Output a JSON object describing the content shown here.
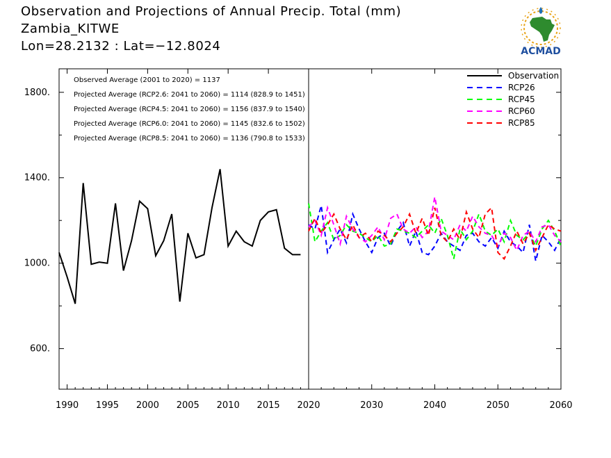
{
  "header": {
    "title": "Observation and Projections of Annual Precip. Total (mm)",
    "location": "Zambia_KITWE",
    "coords": "Lon=28.2132 : Lat=−12.8024"
  },
  "logo": {
    "text": "ACMAD",
    "colors": {
      "africa": "#2e8b2e",
      "ring": "#e8a317",
      "drop": "#1f6fb5",
      "text": "#1f4f9f"
    }
  },
  "chart_data": {
    "type": "line",
    "title": "Observation and Projections of Annual Precip. Total (mm)",
    "xlabel": "",
    "ylabel": "",
    "xlim": [
      1989,
      2060
    ],
    "ylim": [
      410,
      1910
    ],
    "y_ticks": [
      600,
      1000,
      1400,
      1800
    ],
    "y_tick_labels": [
      "600.",
      "1000.",
      "1400.",
      "1800."
    ],
    "x_ticks_obs": [
      1990,
      1995,
      2000,
      2005,
      2010,
      2015,
      2020
    ],
    "x_ticks_proj": [
      2030,
      2040,
      2050,
      2060
    ],
    "x_tick_labels": [
      "1990",
      "1995",
      "2000",
      "2005",
      "2010",
      "2015",
      "2020",
      "2030",
      "2040",
      "2050",
      "2060"
    ],
    "legend_position": "top-right",
    "annotations": [
      "Observed Average (2001 to 2020) = 1137",
      "Projected Average (RCP2.6: 2041 to 2060) = 1114 (828.9 to 1451)",
      "Projected Average (RCP4.5: 2041 to 2060) = 1156 (837.9 to 1540)",
      "Projected Average (RCP6.0: 2041 to 2060) = 1145 (832.6 to 1502)",
      "Projected Average (RCP8.5: 2041 to 2060) = 1136 (790.8 to 1533)"
    ],
    "series": [
      {
        "name": "Observation",
        "color": "#000000",
        "dash": "solid",
        "x": [
          1989,
          1990,
          1991,
          1992,
          1993,
          1994,
          1995,
          1996,
          1997,
          1998,
          1999,
          2000,
          2001,
          2002,
          2003,
          2004,
          2005,
          2006,
          2007,
          2008,
          2009,
          2010,
          2011,
          2012,
          2013,
          2014,
          2015,
          2016,
          2017,
          2018,
          2019
        ],
        "values": [
          1050,
          935,
          810,
          1375,
          995,
          1005,
          1000,
          1280,
          965,
          1105,
          1290,
          1255,
          1035,
          1105,
          1230,
          820,
          1140,
          1025,
          1040,
          1260,
          1440,
          1080,
          1150,
          1100,
          1080,
          1200,
          1240,
          1250,
          1070,
          1040,
          1040
        ]
      },
      {
        "name": "RCP26",
        "color": "#0000ff",
        "dash": "dashed",
        "x": [
          2020,
          2021,
          2022,
          2023,
          2024,
          2025,
          2026,
          2027,
          2028,
          2029,
          2030,
          2031,
          2032,
          2033,
          2034,
          2035,
          2036,
          2037,
          2038,
          2039,
          2040,
          2041,
          2042,
          2043,
          2044,
          2045,
          2046,
          2047,
          2048,
          2049,
          2050,
          2051,
          2052,
          2053,
          2054,
          2055,
          2056,
          2057,
          2058,
          2059,
          2060
        ],
        "values": [
          1180,
          1160,
          1270,
          1050,
          1110,
          1160,
          1095,
          1230,
          1160,
          1100,
          1050,
          1120,
          1140,
          1080,
          1150,
          1190,
          1080,
          1150,
          1050,
          1040,
          1080,
          1140,
          1100,
          1080,
          1060,
          1130,
          1140,
          1100,
          1080,
          1120,
          1070,
          1150,
          1100,
          1080,
          1050,
          1180,
          1010,
          1130,
          1100,
          1060,
          1120
        ]
      },
      {
        "name": "RCP45",
        "color": "#00ff00",
        "dash": "dashed",
        "x": [
          2020,
          2021,
          2022,
          2023,
          2024,
          2025,
          2026,
          2027,
          2028,
          2029,
          2030,
          2031,
          2032,
          2033,
          2034,
          2035,
          2036,
          2037,
          2038,
          2039,
          2040,
          2041,
          2042,
          2043,
          2044,
          2045,
          2046,
          2047,
          2048,
          2049,
          2050,
          2051,
          2052,
          2053,
          2054,
          2055,
          2056,
          2057,
          2058,
          2059,
          2060
        ],
        "values": [
          1280,
          1100,
          1150,
          1190,
          1110,
          1130,
          1180,
          1150,
          1140,
          1120,
          1100,
          1130,
          1080,
          1090,
          1160,
          1150,
          1140,
          1120,
          1150,
          1180,
          1140,
          1210,
          1130,
          1020,
          1160,
          1110,
          1150,
          1230,
          1150,
          1130,
          1160,
          1100,
          1200,
          1130,
          1110,
          1140,
          1080,
          1160,
          1200,
          1150,
          1080
        ]
      },
      {
        "name": "RCP60",
        "color": "#ff00ff",
        "dash": "dashed",
        "x": [
          2020,
          2021,
          2022,
          2023,
          2024,
          2025,
          2026,
          2027,
          2028,
          2029,
          2030,
          2031,
          2032,
          2033,
          2034,
          2035,
          2036,
          2037,
          2038,
          2039,
          2040,
          2041,
          2042,
          2043,
          2044,
          2045,
          2046,
          2047,
          2048,
          2049,
          2050,
          2051,
          2052,
          2053,
          2054,
          2055,
          2056,
          2057,
          2058,
          2059,
          2060
        ],
        "values": [
          1170,
          1200,
          1130,
          1260,
          1180,
          1090,
          1220,
          1160,
          1120,
          1100,
          1130,
          1170,
          1110,
          1210,
          1230,
          1160,
          1140,
          1170,
          1120,
          1150,
          1310,
          1150,
          1130,
          1110,
          1180,
          1150,
          1220,
          1170,
          1140,
          1130,
          1080,
          1140,
          1120,
          1060,
          1130,
          1150,
          1100,
          1170,
          1180,
          1130,
          1100
        ]
      },
      {
        "name": "RCP85",
        "color": "#ff0000",
        "dash": "dashed",
        "x": [
          2020,
          2021,
          2022,
          2023,
          2024,
          2025,
          2026,
          2027,
          2028,
          2029,
          2030,
          2031,
          2032,
          2033,
          2034,
          2035,
          2036,
          2037,
          2038,
          2039,
          2040,
          2041,
          2042,
          2043,
          2044,
          2045,
          2046,
          2047,
          2048,
          2049,
          2050,
          2051,
          2052,
          2053,
          2054,
          2055,
          2056,
          2057,
          2058,
          2059,
          2060
        ],
        "values": [
          1150,
          1210,
          1140,
          1180,
          1230,
          1160,
          1110,
          1180,
          1120,
          1140,
          1100,
          1150,
          1130,
          1100,
          1140,
          1170,
          1230,
          1140,
          1210,
          1130,
          1260,
          1130,
          1100,
          1160,
          1110,
          1240,
          1160,
          1120,
          1230,
          1260,
          1050,
          1020,
          1080,
          1150,
          1090,
          1140,
          1060,
          1120,
          1180,
          1160,
          1150
        ]
      }
    ]
  }
}
